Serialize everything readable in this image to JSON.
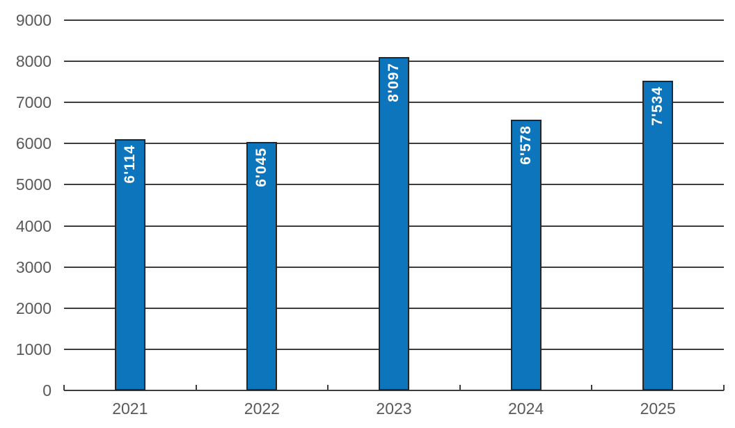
{
  "chart_data": {
    "type": "bar",
    "title": "",
    "xlabel": "",
    "ylabel": "",
    "categories": [
      "2021",
      "2022",
      "2023",
      "2024",
      "2025"
    ],
    "values": [
      6114,
      6045,
      8097,
      6578,
      7534
    ],
    "value_labels": [
      "6'114",
      "6'045",
      "8'097",
      "6'578",
      "7'534"
    ],
    "ylim": [
      0,
      9000
    ],
    "yticks": [
      "0",
      "1000",
      "2000",
      "3000",
      "4000",
      "5000",
      "6000",
      "7000",
      "8000",
      "9000"
    ],
    "grid": true,
    "legend": "none",
    "colors": {
      "bar_fill": "#0d75bc",
      "bar_border": "#262626",
      "bar_value_label": "#ffffff",
      "gridline": "#3d3d3d",
      "axis_line": "#3d3d3d",
      "tick_mark": "#3d3d3d",
      "tick_label": "#595959",
      "background": "#ffffff"
    }
  }
}
